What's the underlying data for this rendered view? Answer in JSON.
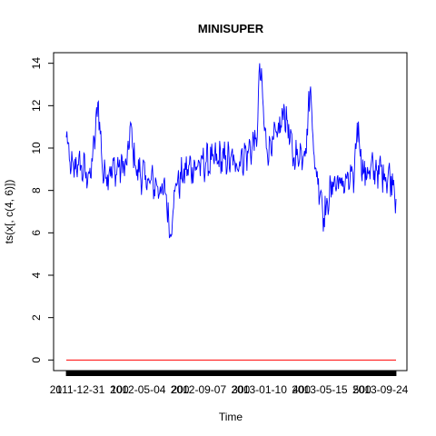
{
  "chart_data": {
    "type": "line",
    "title": "MINISUPER",
    "xlabel": "Time",
    "ylabel": "ts(x[, c(4, 6)])",
    "ylim": [
      -0.5,
      14.5
    ],
    "y_ticks": [
      0,
      2,
      4,
      6,
      8,
      10,
      12,
      14
    ],
    "x_tick_labels": [
      {
        "label": "2011-12-31",
        "index": 0
      },
      {
        "label": "2012-05-04",
        "index": 100
      },
      {
        "label": "2012-09-07",
        "index": 200
      },
      {
        "label": "2013-01-10",
        "index": 300
      },
      {
        "label": "2013-05-15",
        "index": 400
      },
      {
        "label": "2013-09-24",
        "index": 500
      }
    ],
    "x_tick_overlap_labels": [
      {
        "label": "1",
        "index": 0
      },
      {
        "label": "100",
        "index": 100
      },
      {
        "label": "200",
        "index": 200
      },
      {
        "label": "300",
        "index": 300
      },
      {
        "label": "400",
        "index": 400
      },
      {
        "label": "500",
        "index": 500
      }
    ],
    "n_points": 545,
    "series": [
      {
        "color": "#0000ff",
        "anchor_points": [
          {
            "index": 0,
            "value": 10.5
          },
          {
            "index": 8,
            "value": 9.0
          },
          {
            "index": 20,
            "value": 9.2
          },
          {
            "index": 40,
            "value": 8.6
          },
          {
            "index": 53,
            "value": 12.2
          },
          {
            "index": 60,
            "value": 8.8
          },
          {
            "index": 80,
            "value": 9.0
          },
          {
            "index": 100,
            "value": 9.2
          },
          {
            "index": 105,
            "value": 11.0
          },
          {
            "index": 115,
            "value": 9.0
          },
          {
            "index": 135,
            "value": 8.5
          },
          {
            "index": 150,
            "value": 8.2
          },
          {
            "index": 165,
            "value": 7.8
          },
          {
            "index": 171,
            "value": 5.8
          },
          {
            "index": 180,
            "value": 8.2
          },
          {
            "index": 200,
            "value": 9.0
          },
          {
            "index": 230,
            "value": 9.3
          },
          {
            "index": 260,
            "value": 9.5
          },
          {
            "index": 280,
            "value": 9.3
          },
          {
            "index": 300,
            "value": 9.8
          },
          {
            "index": 315,
            "value": 10.5
          },
          {
            "index": 319,
            "value": 14.0
          },
          {
            "index": 330,
            "value": 10.0
          },
          {
            "index": 348,
            "value": 10.5
          },
          {
            "index": 360,
            "value": 11.8
          },
          {
            "index": 375,
            "value": 9.5
          },
          {
            "index": 395,
            "value": 10.0
          },
          {
            "index": 403,
            "value": 12.9
          },
          {
            "index": 410,
            "value": 9.0
          },
          {
            "index": 420,
            "value": 8.0
          },
          {
            "index": 425,
            "value": 6.7
          },
          {
            "index": 440,
            "value": 8.4
          },
          {
            "index": 460,
            "value": 8.3
          },
          {
            "index": 475,
            "value": 8.6
          },
          {
            "index": 480,
            "value": 11.2
          },
          {
            "index": 490,
            "value": 8.8
          },
          {
            "index": 510,
            "value": 9.0
          },
          {
            "index": 525,
            "value": 8.8
          },
          {
            "index": 540,
            "value": 8.5
          },
          {
            "index": 544,
            "value": 7.6
          }
        ]
      },
      {
        "color": "#ff0000",
        "constant_value": 0
      }
    ],
    "grid": false,
    "legend": "none"
  }
}
